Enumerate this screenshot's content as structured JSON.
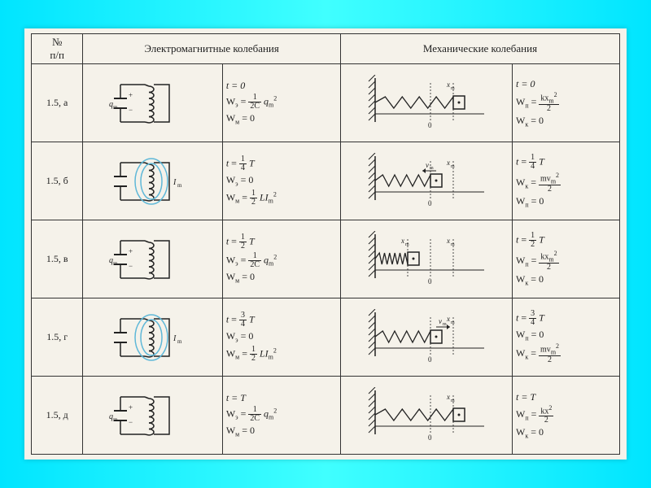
{
  "header": {
    "num": "№\nп/п",
    "em": "Электромагнитные колебания",
    "mech": "Механические колебания"
  },
  "rows": [
    {
      "id": "1.5, а",
      "em_state": "charged_cap",
      "em_eq": {
        "t": "t = 0",
        "W1n": "1",
        "W1d": "2C",
        "W1tail": "q",
        "W1sub": "m",
        "W1sup": "2",
        "W1label": "W<sub>э</sub>",
        "W2": "W<sub>м</sub> = 0"
      },
      "mech_state": "right_max",
      "mech_eq": {
        "t": "t = 0",
        "W1label": "W<sub>п</sub>",
        "W1frac_n": "kx<sub>m</sub><sup>2</sup>",
        "W1frac_d": "2",
        "W2": "W<sub>к</sub> = 0"
      }
    },
    {
      "id": "1.5, б",
      "em_state": "current_max",
      "em_eq": {
        "t_n": "1",
        "t_d": "4",
        "W1": "W<sub>э</sub> = 0",
        "W2label": "W<sub>м</sub>",
        "W2frac_n": "1",
        "W2frac_d": "2",
        "W2tail": "LI",
        "W2sub": "m",
        "W2sup": "2"
      },
      "mech_state": "equilibrium_vel",
      "mech_eq": {
        "t_n": "1",
        "t_d": "4",
        "W1label": "W<sub>к</sub>",
        "W1frac_n": "mv<sub>m</sub><sup>2</sup>",
        "W1frac_d": "2",
        "W2": "W<sub>п</sub> = 0"
      }
    },
    {
      "id": "1.5, в",
      "em_state": "charged_cap_rev",
      "em_eq": {
        "t_n": "1",
        "t_d": "2",
        "W1label": "W<sub>э</sub>",
        "W1frac_n": "1",
        "W1frac_d": "2C",
        "W1tail": "q",
        "W1sub": "m",
        "W1sup": "2",
        "W2": "W<sub>м</sub> = 0"
      },
      "mech_state": "left_max",
      "mech_eq": {
        "t_n": "1",
        "t_d": "2",
        "W1label": "W<sub>п</sub>",
        "W1frac_n": "kx<sub>m</sub><sup>2</sup>",
        "W1frac_d": "2",
        "W2": "W<sub>к</sub> = 0"
      }
    },
    {
      "id": "1.5, г",
      "em_state": "current_max_rev",
      "em_eq": {
        "t_n": "3",
        "t_d": "4",
        "W1": "W<sub>э</sub> = 0",
        "W2label": "W<sub>м</sub>",
        "W2frac_n": "1",
        "W2frac_d": "2",
        "W2tail": "LI",
        "W2sub": "m",
        "W2sup": "2"
      },
      "mech_state": "equilibrium_vel_rev",
      "mech_eq": {
        "t_n": "3",
        "t_d": "4",
        "W1": "W<sub>п</sub> = 0",
        "W2label": "W<sub>к</sub>",
        "W2frac_n": "mv<sub>m</sub><sup>2</sup>",
        "W2frac_d": "2"
      }
    },
    {
      "id": "1.5, д",
      "em_state": "charged_cap",
      "em_eq": {
        "t": "t = T",
        "W1label": "W<sub>э</sub>",
        "W1frac_n": "1",
        "W1frac_d": "2C",
        "W1tail": "q",
        "W1sub": "m",
        "W1sup": "2",
        "W2": "W<sub>м</sub> = 0"
      },
      "mech_state": "right_max",
      "mech_eq": {
        "t": "t = T",
        "W1label": "W<sub>п</sub>",
        "W1frac_n": "kx<sup>2</sup>",
        "W1frac_d": "2",
        "W2": "W<sub>к</sub> = 0"
      }
    }
  ],
  "colors": {
    "ink": "#222222",
    "field": "#5fb8d8",
    "paper": "#f5f2ea",
    "border": "#333333"
  }
}
